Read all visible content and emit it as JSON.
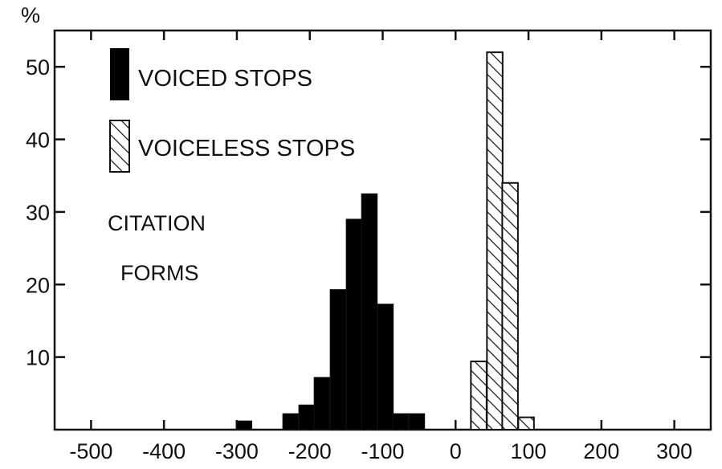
{
  "chart_data": {
    "type": "bar",
    "title": "",
    "xlabel": "",
    "ylabel": "%",
    "xlim": [
      -550,
      350
    ],
    "ylim": [
      0,
      55
    ],
    "xticks": [
      {
        "value": -500,
        "label": "-500"
      },
      {
        "value": -400,
        "label": "-400"
      },
      {
        "value": -300,
        "label": "-300"
      },
      {
        "value": -200,
        "label": "-200"
      },
      {
        "value": -100,
        "label": "-100"
      },
      {
        "value": 0,
        "label": "0"
      },
      {
        "value": 100,
        "label": "100"
      },
      {
        "value": 200,
        "label": "200"
      },
      {
        "value": 300,
        "label": "300"
      }
    ],
    "yticks": [
      {
        "value": 10,
        "label": "10"
      },
      {
        "value": 20,
        "label": "20"
      },
      {
        "value": 30,
        "label": "30"
      },
      {
        "value": 40,
        "label": "40"
      },
      {
        "value": 50,
        "label": "50"
      }
    ],
    "bin_width": 21.5,
    "series": [
      {
        "name": "VOICED STOPS",
        "fill": "solid",
        "color": "#000000",
        "bin_starts": [
          -301,
          -237,
          -215,
          -194,
          -172,
          -150,
          -129,
          -107,
          -86,
          -64
        ],
        "values": [
          1.2,
          2.2,
          3.4,
          7.2,
          19.3,
          29.0,
          32.5,
          17.3,
          2.2,
          2.2
        ]
      },
      {
        "name": "VOICELESS STOPS",
        "fill": "hatched",
        "color": "#000000",
        "bin_starts": [
          21,
          43,
          64,
          86
        ],
        "values": [
          9.4,
          52.0,
          34.0,
          1.7
        ]
      }
    ],
    "annotation": [
      "CITATION",
      "FORMS"
    ],
    "legend_position": "top-left",
    "grid": false
  }
}
